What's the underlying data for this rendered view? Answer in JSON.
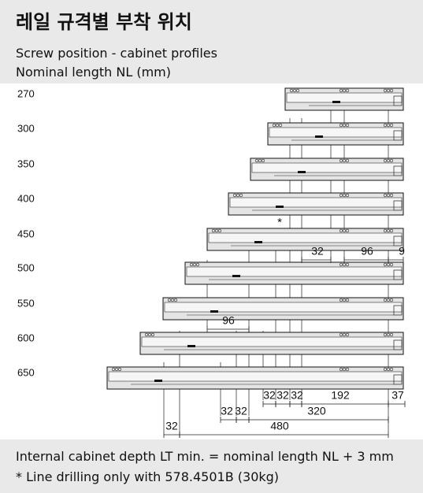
{
  "header": {
    "title": "레일 규격별 부착 위치",
    "subtitle": [
      "Screw position - cabinet profiles",
      "Nominal length NL (mm)"
    ]
  },
  "rows": [
    "270",
    "300",
    "350",
    "400",
    "450",
    "500",
    "550",
    "600",
    "650"
  ],
  "dimensions": {
    "star": "*",
    "row450": [
      "32",
      "96",
      "9"
    ],
    "row550": "96",
    "bottom1": [
      "32",
      "32",
      "32",
      "192",
      "37"
    ],
    "bottom2": [
      "32",
      "32",
      "320"
    ],
    "bottom3": [
      "32",
      "480"
    ]
  },
  "footer": [
    "Internal cabinet depth LT min. = nominal length NL + 3 mm",
    "* Line drilling only with 578.4501B (30kg)"
  ]
}
